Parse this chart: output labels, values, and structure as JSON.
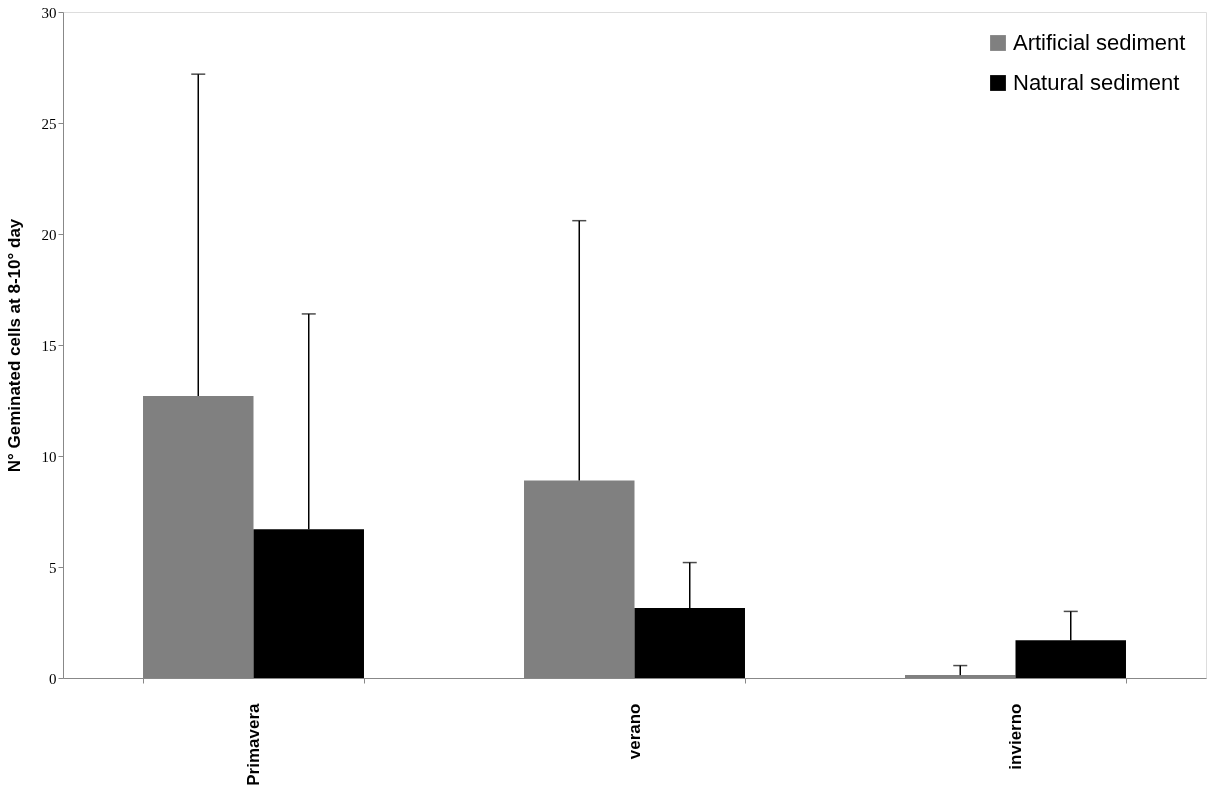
{
  "chart_data": {
    "type": "bar",
    "ylabel": "N°  Geminated cells at  8-10° day",
    "categories": [
      "Primavera",
      "verano",
      "invierno"
    ],
    "series": [
      {
        "name": "Artificial sediment",
        "color": "#808080",
        "values": [
          12.7,
          8.9,
          0.13
        ],
        "errors": [
          [
            12.7,
            27.2
          ],
          [
            8.9,
            20.6
          ],
          [
            0.13,
            0.56
          ]
        ]
      },
      {
        "name": "Natural sediment",
        "color": "#000000",
        "values": [
          6.7,
          3.15,
          1.7
        ],
        "errors": [
          [
            6.7,
            16.4
          ],
          [
            3.15,
            5.2
          ],
          [
            1.7,
            3.0
          ]
        ]
      }
    ],
    "ylim": [
      0,
      30
    ],
    "yticks": [
      0,
      5,
      10,
      15,
      20,
      25,
      30
    ],
    "grid": false,
    "legend": "top right"
  }
}
